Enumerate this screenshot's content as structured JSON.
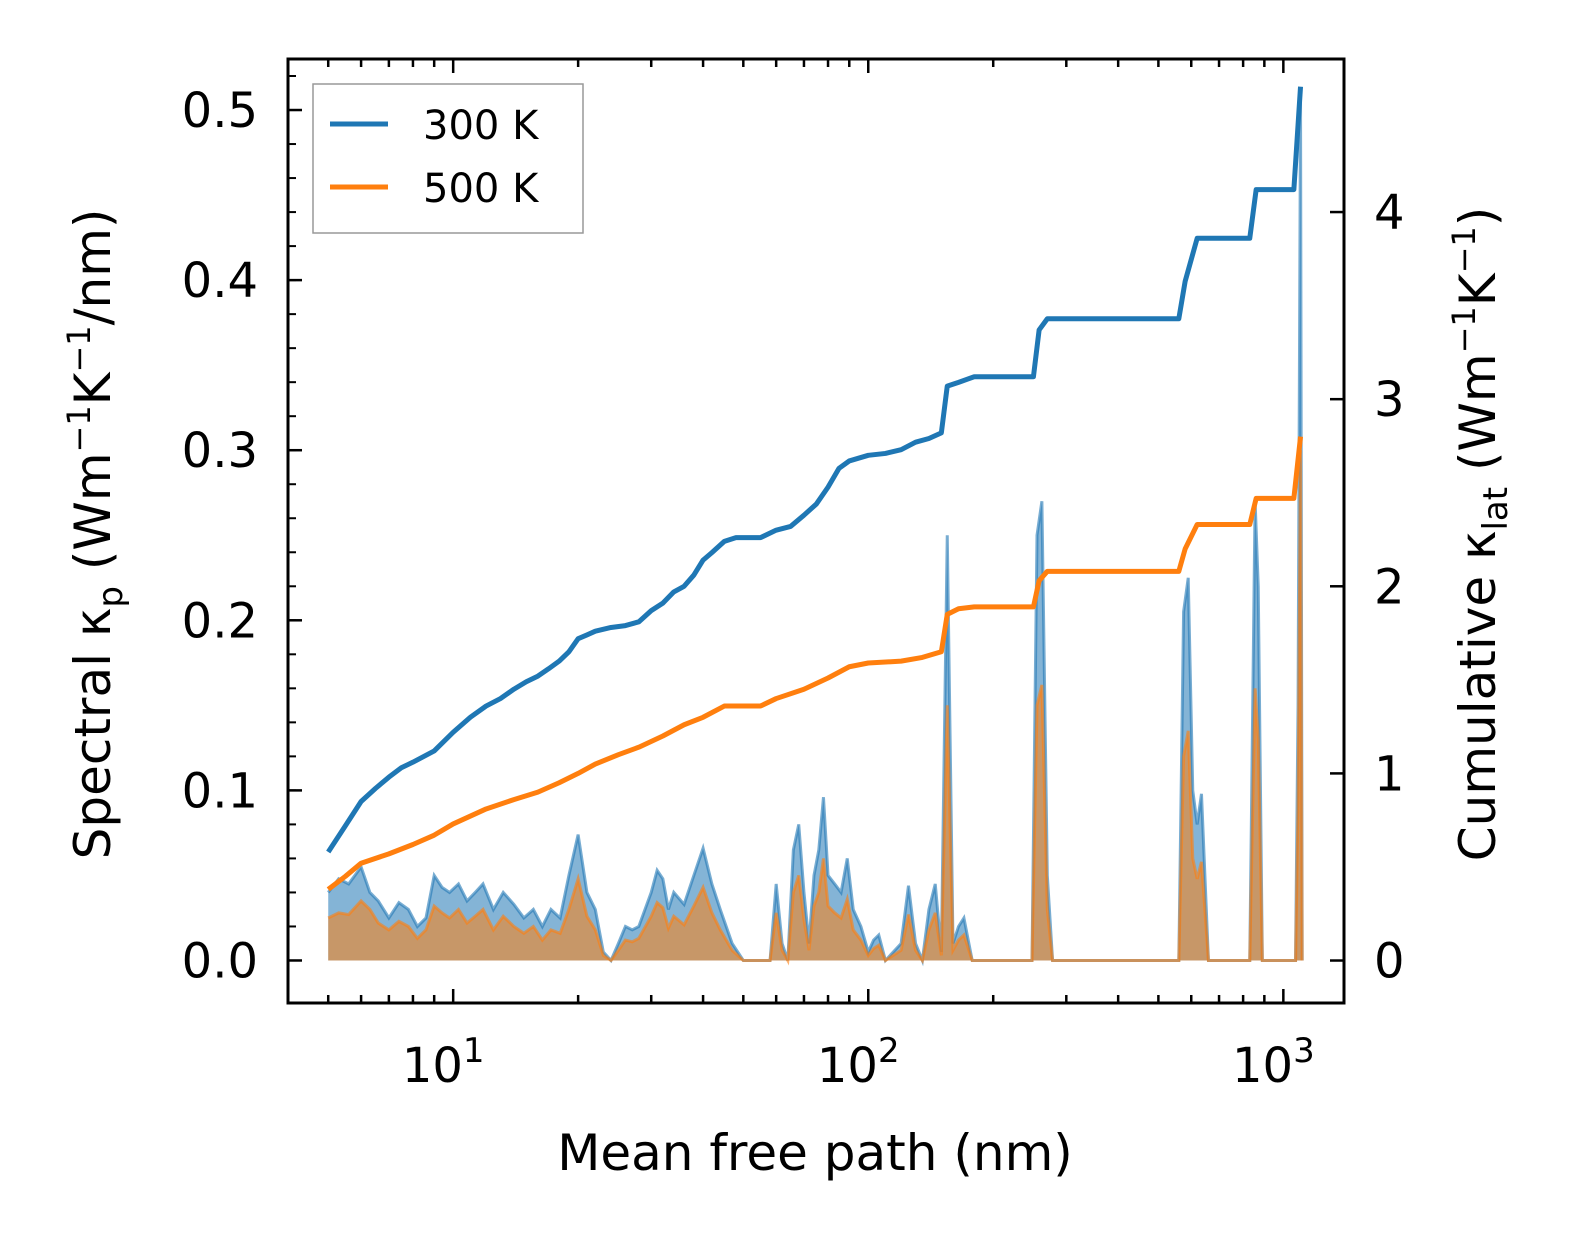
{
  "chart_data": {
    "type": "line",
    "xlabel": "Mean free path (nm)",
    "x_scale": "log",
    "xlim": [
      4,
      1400
    ],
    "x_tick_labels": [
      {
        "base": "10",
        "exp": "1",
        "value": 10
      },
      {
        "base": "10",
        "exp": "2",
        "value": 100
      },
      {
        "base": "10",
        "exp": "3",
        "value": 1000
      }
    ],
    "ylabel_left": {
      "prefix": "Spectral κ",
      "sub": "p",
      "open": " (Wm",
      "sup1": "−1",
      "mid": "K",
      "sup2": "−1",
      "close": "/nm)"
    },
    "ylim_left": [
      -0.025,
      0.53
    ],
    "y_ticks_left": [
      "0.0",
      "0.1",
      "0.2",
      "0.3",
      "0.4",
      "0.5"
    ],
    "ylabel_right": {
      "prefix": "Cumulative κ",
      "sub": "lat",
      "open": " (Wm",
      "sup1": "−1",
      "mid": "K",
      "sup2": "−1",
      "close": ")"
    },
    "ylim_right": [
      -0.227,
      4.818
    ],
    "y_ticks_right": [
      "0",
      "1",
      "2",
      "3",
      "4"
    ],
    "legend": {
      "position": "top-left",
      "entries": [
        "300 K",
        "500 K"
      ]
    },
    "colors": {
      "300 K": "#1f77b4",
      "500 K": "#ff7f0e"
    },
    "series": [
      {
        "name": "300 K",
        "axis": "right",
        "kind": "cumulative",
        "points": [
          [
            5,
            0.58
          ],
          [
            5.5,
            0.72
          ],
          [
            6,
            0.85
          ],
          [
            6.5,
            0.92
          ],
          [
            7,
            0.98
          ],
          [
            7.5,
            1.03
          ],
          [
            8,
            1.06
          ],
          [
            9,
            1.12
          ],
          [
            10,
            1.22
          ],
          [
            11,
            1.3
          ],
          [
            12,
            1.36
          ],
          [
            13,
            1.4
          ],
          [
            14,
            1.45
          ],
          [
            15,
            1.49
          ],
          [
            16,
            1.52
          ],
          [
            17,
            1.56
          ],
          [
            18,
            1.6
          ],
          [
            19,
            1.65
          ],
          [
            20,
            1.72
          ],
          [
            21,
            1.74
          ],
          [
            22,
            1.76
          ],
          [
            24,
            1.78
          ],
          [
            26,
            1.79
          ],
          [
            28,
            1.81
          ],
          [
            30,
            1.87
          ],
          [
            32,
            1.91
          ],
          [
            34,
            1.97
          ],
          [
            36,
            2.0
          ],
          [
            38,
            2.06
          ],
          [
            40,
            2.14
          ],
          [
            42,
            2.18
          ],
          [
            45,
            2.24
          ],
          [
            48,
            2.26
          ],
          [
            55,
            2.26
          ],
          [
            60,
            2.3
          ],
          [
            65,
            2.32
          ],
          [
            70,
            2.38
          ],
          [
            75,
            2.44
          ],
          [
            80,
            2.53
          ],
          [
            85,
            2.63
          ],
          [
            90,
            2.67
          ],
          [
            100,
            2.7
          ],
          [
            110,
            2.71
          ],
          [
            120,
            2.73
          ],
          [
            130,
            2.77
          ],
          [
            140,
            2.79
          ],
          [
            150,
            2.82
          ],
          [
            155,
            3.07
          ],
          [
            165,
            3.09
          ],
          [
            180,
            3.12
          ],
          [
            250,
            3.12
          ],
          [
            258,
            3.37
          ],
          [
            270,
            3.43
          ],
          [
            300,
            3.43
          ],
          [
            560,
            3.43
          ],
          [
            580,
            3.63
          ],
          [
            620,
            3.86
          ],
          [
            700,
            3.86
          ],
          [
            830,
            3.86
          ],
          [
            860,
            4.12
          ],
          [
            960,
            4.12
          ],
          [
            1060,
            4.12
          ],
          [
            1100,
            4.67
          ]
        ]
      },
      {
        "name": "500 K",
        "axis": "right",
        "kind": "cumulative",
        "points": [
          [
            5,
            0.38
          ],
          [
            5.5,
            0.45
          ],
          [
            6,
            0.52
          ],
          [
            7,
            0.57
          ],
          [
            8,
            0.62
          ],
          [
            9,
            0.67
          ],
          [
            10,
            0.73
          ],
          [
            12,
            0.81
          ],
          [
            14,
            0.86
          ],
          [
            16,
            0.9
          ],
          [
            18,
            0.95
          ],
          [
            20,
            1.0
          ],
          [
            22,
            1.05
          ],
          [
            25,
            1.1
          ],
          [
            28,
            1.14
          ],
          [
            32,
            1.2
          ],
          [
            36,
            1.26
          ],
          [
            40,
            1.3
          ],
          [
            45,
            1.36
          ],
          [
            55,
            1.36
          ],
          [
            60,
            1.4
          ],
          [
            70,
            1.45
          ],
          [
            80,
            1.51
          ],
          [
            90,
            1.57
          ],
          [
            100,
            1.59
          ],
          [
            120,
            1.6
          ],
          [
            135,
            1.62
          ],
          [
            150,
            1.65
          ],
          [
            155,
            1.85
          ],
          [
            165,
            1.88
          ],
          [
            180,
            1.89
          ],
          [
            250,
            1.89
          ],
          [
            258,
            2.03
          ],
          [
            270,
            2.08
          ],
          [
            560,
            2.08
          ],
          [
            580,
            2.2
          ],
          [
            620,
            2.33
          ],
          [
            830,
            2.33
          ],
          [
            860,
            2.47
          ],
          [
            1060,
            2.47
          ],
          [
            1100,
            2.8
          ]
        ]
      },
      {
        "name": "300 K",
        "axis": "left",
        "kind": "spectral",
        "points": [
          [
            5,
            0.04
          ],
          [
            5.3,
            0.048
          ],
          [
            5.6,
            0.045
          ],
          [
            6,
            0.055
          ],
          [
            6.3,
            0.04
          ],
          [
            6.6,
            0.035
          ],
          [
            7,
            0.025
          ],
          [
            7.4,
            0.034
          ],
          [
            7.8,
            0.03
          ],
          [
            8.2,
            0.02
          ],
          [
            8.6,
            0.025
          ],
          [
            9,
            0.05
          ],
          [
            9.4,
            0.043
          ],
          [
            9.8,
            0.04
          ],
          [
            10.3,
            0.045
          ],
          [
            10.8,
            0.035
          ],
          [
            11.3,
            0.04
          ],
          [
            11.8,
            0.045
          ],
          [
            12.5,
            0.03
          ],
          [
            13.2,
            0.04
          ],
          [
            14,
            0.033
          ],
          [
            14.8,
            0.025
          ],
          [
            15.6,
            0.03
          ],
          [
            16.4,
            0.02
          ],
          [
            17.2,
            0.03
          ],
          [
            18.1,
            0.025
          ],
          [
            19,
            0.05
          ],
          [
            20,
            0.074
          ],
          [
            21,
            0.04
          ],
          [
            22,
            0.03
          ],
          [
            23,
            0.005
          ],
          [
            24,
            0.0
          ],
          [
            25,
            0.01
          ],
          [
            26,
            0.02
          ],
          [
            27,
            0.018
          ],
          [
            28,
            0.02
          ],
          [
            30,
            0.04
          ],
          [
            31,
            0.053
          ],
          [
            32,
            0.048
          ],
          [
            33,
            0.03
          ],
          [
            34,
            0.04
          ],
          [
            36,
            0.033
          ],
          [
            38,
            0.05
          ],
          [
            40,
            0.066
          ],
          [
            42,
            0.045
          ],
          [
            44,
            0.03
          ],
          [
            47,
            0.01
          ],
          [
            50,
            0.0
          ],
          [
            58,
            0.0
          ],
          [
            60,
            0.045
          ],
          [
            62,
            0.01
          ],
          [
            64,
            0.0
          ],
          [
            66,
            0.065
          ],
          [
            68,
            0.08
          ],
          [
            70,
            0.04
          ],
          [
            72,
            0.01
          ],
          [
            74,
            0.05
          ],
          [
            76,
            0.065
          ],
          [
            78,
            0.096
          ],
          [
            80,
            0.05
          ],
          [
            83,
            0.045
          ],
          [
            86,
            0.04
          ],
          [
            89,
            0.06
          ],
          [
            92,
            0.03
          ],
          [
            96,
            0.02
          ],
          [
            100,
            0.005
          ],
          [
            103,
            0.012
          ],
          [
            106,
            0.015
          ],
          [
            110,
            0.0
          ],
          [
            120,
            0.01
          ],
          [
            125,
            0.044
          ],
          [
            130,
            0.01
          ],
          [
            135,
            0.0
          ],
          [
            140,
            0.03
          ],
          [
            145,
            0.045
          ],
          [
            150,
            0.005
          ],
          [
            155,
            0.25
          ],
          [
            160,
            0.01
          ],
          [
            165,
            0.02
          ],
          [
            170,
            0.025
          ],
          [
            178,
            0.0
          ],
          [
            248,
            0.0
          ],
          [
            255,
            0.25
          ],
          [
            262,
            0.27
          ],
          [
            270,
            0.05
          ],
          [
            278,
            0.0
          ],
          [
            560,
            0.0
          ],
          [
            575,
            0.205
          ],
          [
            590,
            0.225
          ],
          [
            605,
            0.1
          ],
          [
            620,
            0.08
          ],
          [
            635,
            0.098
          ],
          [
            660,
            0.0
          ],
          [
            830,
            0.0
          ],
          [
            855,
            0.27
          ],
          [
            870,
            0.22
          ],
          [
            890,
            0.0
          ],
          [
            1070,
            0.0
          ],
          [
            1085,
            0.15
          ],
          [
            1100,
            0.505
          ],
          [
            1110,
            0.0
          ]
        ]
      },
      {
        "name": "500 K",
        "axis": "left",
        "kind": "spectral",
        "points": [
          [
            5,
            0.025
          ],
          [
            5.3,
            0.028
          ],
          [
            5.6,
            0.027
          ],
          [
            6,
            0.035
          ],
          [
            6.3,
            0.03
          ],
          [
            6.6,
            0.022
          ],
          [
            7,
            0.018
          ],
          [
            7.4,
            0.023
          ],
          [
            7.8,
            0.02
          ],
          [
            8.2,
            0.013
          ],
          [
            8.6,
            0.018
          ],
          [
            9,
            0.032
          ],
          [
            9.4,
            0.028
          ],
          [
            9.8,
            0.025
          ],
          [
            10.3,
            0.03
          ],
          [
            10.8,
            0.022
          ],
          [
            11.3,
            0.026
          ],
          [
            11.8,
            0.03
          ],
          [
            12.5,
            0.018
          ],
          [
            13.2,
            0.026
          ],
          [
            14,
            0.02
          ],
          [
            14.8,
            0.016
          ],
          [
            15.6,
            0.02
          ],
          [
            16.4,
            0.012
          ],
          [
            17.2,
            0.018
          ],
          [
            18.1,
            0.016
          ],
          [
            19,
            0.03
          ],
          [
            20,
            0.048
          ],
          [
            21,
            0.026
          ],
          [
            22,
            0.018
          ],
          [
            23,
            0.003
          ],
          [
            24,
            0.0
          ],
          [
            25,
            0.006
          ],
          [
            26,
            0.012
          ],
          [
            27,
            0.011
          ],
          [
            28,
            0.013
          ],
          [
            30,
            0.026
          ],
          [
            31,
            0.034
          ],
          [
            32,
            0.031
          ],
          [
            33,
            0.019
          ],
          [
            34,
            0.026
          ],
          [
            36,
            0.021
          ],
          [
            38,
            0.032
          ],
          [
            40,
            0.043
          ],
          [
            42,
            0.028
          ],
          [
            44,
            0.018
          ],
          [
            47,
            0.006
          ],
          [
            50,
            0.0
          ],
          [
            58,
            0.0
          ],
          [
            60,
            0.028
          ],
          [
            62,
            0.006
          ],
          [
            64,
            0.0
          ],
          [
            66,
            0.04
          ],
          [
            68,
            0.05
          ],
          [
            70,
            0.024
          ],
          [
            72,
            0.006
          ],
          [
            74,
            0.032
          ],
          [
            76,
            0.04
          ],
          [
            78,
            0.06
          ],
          [
            80,
            0.032
          ],
          [
            83,
            0.028
          ],
          [
            86,
            0.025
          ],
          [
            89,
            0.036
          ],
          [
            92,
            0.018
          ],
          [
            96,
            0.012
          ],
          [
            100,
            0.003
          ],
          [
            103,
            0.007
          ],
          [
            106,
            0.009
          ],
          [
            110,
            0.0
          ],
          [
            120,
            0.006
          ],
          [
            125,
            0.027
          ],
          [
            130,
            0.006
          ],
          [
            135,
            0.0
          ],
          [
            140,
            0.018
          ],
          [
            145,
            0.028
          ],
          [
            150,
            0.003
          ],
          [
            155,
            0.15
          ],
          [
            160,
            0.006
          ],
          [
            165,
            0.012
          ],
          [
            170,
            0.015
          ],
          [
            178,
            0.0
          ],
          [
            248,
            0.0
          ],
          [
            255,
            0.15
          ],
          [
            262,
            0.162
          ],
          [
            270,
            0.03
          ],
          [
            278,
            0.0
          ],
          [
            560,
            0.0
          ],
          [
            575,
            0.12
          ],
          [
            590,
            0.135
          ],
          [
            605,
            0.06
          ],
          [
            620,
            0.048
          ],
          [
            635,
            0.058
          ],
          [
            660,
            0.0
          ],
          [
            830,
            0.0
          ],
          [
            855,
            0.16
          ],
          [
            870,
            0.13
          ],
          [
            890,
            0.0
          ],
          [
            1070,
            0.0
          ],
          [
            1085,
            0.09
          ],
          [
            1100,
            0.3
          ],
          [
            1110,
            0.0
          ]
        ]
      }
    ]
  }
}
